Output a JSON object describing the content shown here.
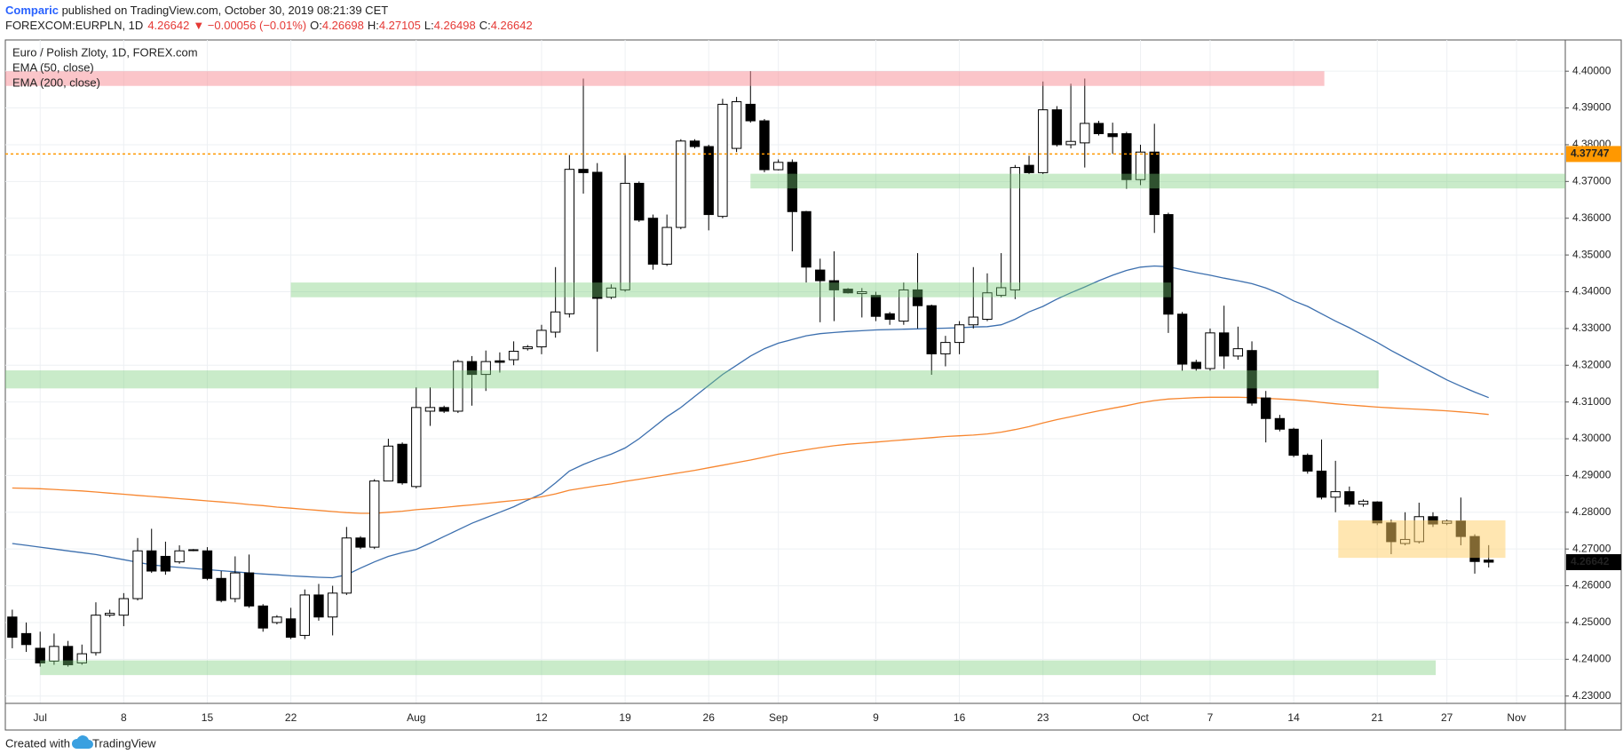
{
  "header": {
    "author": "Comparic",
    "published": " published on TradingView.com, October 30, 2019 08:21:39 CET",
    "symbol": "FOREXCOM:EURPLN, 1D",
    "price": "4.26642",
    "change": "▼ −0.00056 (−0.01%)",
    "ohlc": [
      {
        "label": "O:",
        "value": "4.26698"
      },
      {
        "label": "H:",
        "value": "4.27105"
      },
      {
        "label": "L:",
        "value": "4.26498"
      },
      {
        "label": "C:",
        "value": "4.26642"
      }
    ]
  },
  "footer": {
    "text": "Created with",
    "brand": "TradingView"
  },
  "chart_data": {
    "type": "candlestick",
    "title": "Euro / Polish Zloty, 1D, FOREX.com",
    "categories": [
      null,
      null,
      "Jul",
      null,
      null,
      null,
      null,
      null,
      "8",
      null,
      null,
      null,
      null,
      null,
      "15",
      null,
      null,
      null,
      null,
      null,
      "22",
      null,
      null,
      null,
      null,
      null,
      null,
      null,
      null,
      "Aug",
      null,
      null,
      null,
      null,
      null,
      null,
      null,
      null,
      "12",
      null,
      null,
      null,
      null,
      null,
      "19",
      null,
      null,
      null,
      null,
      null,
      "26",
      null,
      null,
      null,
      null,
      "Sep",
      null,
      null,
      null,
      null,
      null,
      null,
      "9",
      null,
      null,
      null,
      null,
      null,
      "16",
      null,
      null,
      null,
      null,
      null,
      "23",
      null,
      null,
      null,
      null,
      null,
      null,
      "Oct",
      null,
      null,
      null,
      null,
      "7",
      null,
      null,
      null,
      null,
      null,
      "14",
      null,
      null,
      null,
      null,
      null,
      "21",
      null,
      null,
      null,
      null,
      "27",
      null,
      null,
      null,
      null,
      "Nov",
      null,
      null,
      null
    ],
    "open": [
      4.2515,
      4.247,
      4.243,
      4.2395,
      4.2435,
      4.239,
      4.2418,
      4.252,
      4.252,
      4.2565,
      4.2695,
      4.268,
      4.2665,
      4.2696,
      4.2695,
      4.262,
      4.2565,
      4.2635,
      4.2545,
      4.25,
      4.251,
      4.2465,
      4.2575,
      4.2515,
      4.258,
      4.273,
      4.2705,
      4.2885,
      4.2985,
      4.287,
      4.3075,
      4.3085,
      4.3075,
      4.321,
      4.3175,
      4.3212,
      4.3215,
      4.3245,
      4.325,
      4.329,
      4.334,
      4.3733,
      4.3725,
      4.3385,
      4.3405,
      4.3695,
      4.36,
      4.3475,
      4.3575,
      4.381,
      4.3795,
      4.3605,
      4.379,
      4.391,
      4.3865,
      4.3732,
      4.3752,
      4.3618,
      4.3459,
      4.343,
      4.3407,
      4.3395,
      4.339,
      4.334,
      4.332,
      4.3405,
      4.3362,
      4.3231,
      4.3262,
      4.331,
      4.3325,
      4.339,
      4.3405,
      4.3744,
      4.3724,
      4.3895,
      4.38,
      4.3805,
      4.3858,
      4.383,
      4.383,
      4.3705,
      4.378,
      4.361,
      4.3339,
      4.3208,
      4.3191,
      4.3288,
      4.3225,
      4.324,
      4.3111,
      4.3055,
      4.3026,
      4.2955,
      4.2912,
      4.2841,
      4.2856,
      4.2822,
      4.2828,
      4.2771,
      4.2715,
      4.272,
      4.2788,
      4.277,
      4.2776,
      4.2734,
      4.26698,
      null,
      null,
      null,
      null,
      null
    ],
    "high": [
      4.2535,
      4.25,
      4.2475,
      4.247,
      4.245,
      4.244,
      4.2555,
      4.2535,
      4.258,
      4.273,
      4.2755,
      4.272,
      4.271,
      4.27,
      4.2705,
      4.264,
      4.268,
      4.2685,
      4.255,
      4.252,
      4.254,
      4.259,
      4.2605,
      4.26,
      4.276,
      4.2735,
      4.289,
      4.3,
      4.299,
      4.314,
      4.314,
      4.309,
      4.3215,
      4.3225,
      4.324,
      4.3235,
      4.3265,
      4.3255,
      4.331,
      4.3467,
      4.3772,
      4.398,
      4.375,
      4.342,
      4.3772,
      4.37,
      4.361,
      4.361,
      4.3815,
      4.3815,
      4.38,
      4.3925,
      4.393,
      4.4,
      4.387,
      4.376,
      4.376,
      4.362,
      4.349,
      4.351,
      4.341,
      4.341,
      4.34,
      4.3345,
      4.3425,
      4.3505,
      4.3365,
      4.328,
      4.332,
      4.3467,
      4.345,
      4.3505,
      4.3745,
      4.377,
      4.3972,
      4.3905,
      4.3966,
      4.398,
      4.3865,
      4.386,
      4.3835,
      4.38,
      4.3857,
      4.3615,
      4.3345,
      4.3215,
      4.33,
      4.3362,
      4.3305,
      4.3265,
      4.313,
      4.3065,
      4.303,
      4.296,
      4.2998,
      4.294,
      4.287,
      4.2835,
      4.283,
      4.278,
      4.28,
      4.2826,
      4.28,
      4.278,
      4.284,
      4.274,
      4.27105,
      null,
      null,
      null,
      null,
      null
    ],
    "low": [
      4.243,
      4.242,
      4.238,
      4.2385,
      4.238,
      4.2385,
      4.241,
      4.2515,
      4.249,
      4.256,
      4.2635,
      4.263,
      4.266,
      4.2694,
      4.2615,
      4.2555,
      4.2555,
      4.254,
      4.2475,
      4.2495,
      4.2455,
      4.2455,
      4.2505,
      4.2465,
      4.2575,
      4.27,
      4.27,
      4.2885,
      4.2875,
      4.2865,
      4.3035,
      4.307,
      4.307,
      4.309,
      4.313,
      4.318,
      4.32,
      4.324,
      4.323,
      4.3275,
      4.333,
      4.3667,
      4.3237,
      4.338,
      4.34,
      4.359,
      4.346,
      4.347,
      4.357,
      4.379,
      4.3567,
      4.36,
      4.378,
      4.386,
      4.3725,
      4.373,
      4.351,
      4.3425,
      4.3317,
      4.332,
      4.3395,
      4.333,
      4.332,
      4.331,
      4.331,
      4.33,
      4.3174,
      4.3197,
      4.323,
      4.33,
      4.332,
      4.3385,
      4.338,
      4.372,
      4.372,
      4.3795,
      4.379,
      4.3738,
      4.3825,
      4.3775,
      4.368,
      4.369,
      4.356,
      4.3288,
      4.3185,
      4.3185,
      4.3185,
      4.319,
      4.3215,
      4.309,
      4.299,
      4.302,
      4.295,
      4.2905,
      4.2835,
      4.28,
      4.2815,
      4.2815,
      4.2765,
      4.2686,
      4.271,
      4.2715,
      4.276,
      4.2765,
      4.271,
      4.2633,
      4.26498,
      null,
      null,
      null,
      null,
      null
    ],
    "close": [
      4.246,
      4.244,
      4.239,
      4.2435,
      4.2385,
      4.2415,
      4.252,
      4.2525,
      4.2565,
      4.2695,
      4.264,
      4.264,
      4.2695,
      4.2698,
      4.262,
      4.256,
      4.2635,
      4.2545,
      4.2485,
      4.2515,
      4.246,
      4.2575,
      4.2515,
      4.258,
      4.273,
      4.2705,
      4.2885,
      4.298,
      4.288,
      4.3085,
      4.3085,
      4.3075,
      4.321,
      4.3175,
      4.321,
      4.3208,
      4.3238,
      4.325,
      4.3295,
      4.3345,
      4.3733,
      4.3724,
      4.3382,
      4.341,
      4.3695,
      4.3595,
      4.3475,
      4.3575,
      4.381,
      4.3795,
      4.361,
      4.391,
      4.3917,
      4.3865,
      4.3732,
      4.3752,
      4.3618,
      4.3467,
      4.343,
      4.3405,
      4.3397,
      4.34,
      4.3333,
      4.3325,
      4.3405,
      4.3362,
      4.3231,
      4.3262,
      4.331,
      4.3331,
      4.3397,
      4.3411,
      4.3738,
      4.3724,
      4.3895,
      4.38,
      4.3809,
      4.3858,
      4.383,
      4.3822,
      4.3705,
      4.378,
      4.361,
      4.3339,
      4.3203,
      4.3191,
      4.3288,
      4.3225,
      4.3245,
      4.3097,
      4.3055,
      4.3026,
      4.2955,
      4.2912,
      4.2841,
      4.2856,
      4.2822,
      4.283,
      4.2771,
      4.272,
      4.2726,
      4.2788,
      4.2768,
      4.2776,
      4.2734,
      4.2666,
      4.26642,
      null,
      null,
      null,
      null,
      null
    ],
    "up_color": "#ffffff",
    "down_color": "#000000",
    "wick_color": "#000000",
    "series": [
      {
        "name": "EMA (50, close)",
        "color": "#3c6fae",
        "values": [
          4.2715,
          4.271,
          4.2705,
          4.27,
          4.2695,
          4.269,
          4.2685,
          4.2678,
          4.2671,
          4.2664,
          4.2657,
          4.2653,
          4.265,
          4.2647,
          4.2644,
          4.2641,
          4.2638,
          4.2635,
          4.2632,
          4.263,
          4.2627,
          4.2625,
          4.2623,
          4.2622,
          4.263,
          4.2648,
          4.2665,
          4.268,
          4.269,
          4.2699,
          4.2716,
          4.2734,
          4.2752,
          4.277,
          4.2785,
          4.28,
          4.2815,
          4.2833,
          4.285,
          4.288,
          4.2912,
          4.293,
          4.2945,
          4.2958,
          4.2975,
          4.3,
          4.303,
          4.306,
          4.3085,
          4.3115,
          4.3145,
          4.3175,
          4.32,
          4.3225,
          4.3245,
          4.326,
          4.327,
          4.328,
          4.3286,
          4.3289,
          4.3292,
          4.3294,
          4.3296,
          4.3297,
          4.3298,
          4.3299,
          4.33,
          4.3301,
          4.3302,
          4.3304,
          4.3305,
          4.331,
          4.3325,
          4.3345,
          4.336,
          4.338,
          4.3397,
          4.3413,
          4.343,
          4.3445,
          4.3458,
          4.3467,
          4.347,
          4.3468,
          4.346,
          4.3452,
          4.3445,
          4.3437,
          4.343,
          4.3422,
          4.341,
          4.3395,
          4.3375,
          4.336,
          4.334,
          4.332,
          4.3302,
          4.3282,
          4.3262,
          4.324,
          4.322,
          4.32,
          4.318,
          4.316,
          4.3143,
          4.3127,
          4.3112,
          null,
          null,
          null,
          null,
          null
        ]
      },
      {
        "name": "EMA (200, close)",
        "color": "#f7862f",
        "values": [
          4.2866,
          4.2865,
          4.2864,
          4.2862,
          4.286,
          4.2858,
          4.2855,
          4.2852,
          4.2849,
          4.2846,
          4.2843,
          4.284,
          4.2837,
          4.2834,
          4.2831,
          4.2828,
          4.2825,
          4.2821,
          4.2818,
          4.2814,
          4.2811,
          4.2808,
          4.2805,
          4.2802,
          4.2799,
          4.2797,
          4.2797,
          4.28,
          4.2803,
          4.2807,
          4.281,
          4.2813,
          4.2817,
          4.282,
          4.2824,
          4.2828,
          4.2832,
          4.2836,
          4.2842,
          4.285,
          4.286,
          4.2866,
          4.2872,
          4.2877,
          4.2884,
          4.289,
          4.2896,
          4.2902,
          4.2908,
          4.2914,
          4.2921,
          4.2928,
          4.2935,
          4.2942,
          4.295,
          4.2958,
          4.2964,
          4.297,
          4.2976,
          4.2981,
          4.2985,
          4.2988,
          4.2991,
          4.2994,
          4.2997,
          4.3,
          4.3003,
          4.3006,
          4.3008,
          4.301,
          4.3013,
          4.3018,
          4.3025,
          4.3033,
          4.3043,
          4.3052,
          4.306,
          4.3068,
          4.3076,
          4.3083,
          4.309,
          4.3098,
          4.3104,
          4.3108,
          4.311,
          4.3112,
          4.3113,
          4.3113,
          4.3113,
          4.3112,
          4.311,
          4.3108,
          4.3106,
          4.3103,
          4.3099,
          4.3095,
          4.3092,
          4.3089,
          4.3086,
          4.3084,
          4.3082,
          4.308,
          4.3078,
          4.3076,
          4.3073,
          4.307,
          4.3066,
          null,
          null,
          null,
          null,
          null
        ]
      }
    ],
    "zones": [
      {
        "x0": -0.5,
        "x1": 94.2,
        "top": 4.4,
        "bottom": 4.396,
        "color": "rgba(248,140,148,0.5)"
      },
      {
        "x0": 53,
        "x1": 111.5,
        "top": 4.3721,
        "bottom": 4.3681,
        "color": "rgba(120,205,120,0.4)"
      },
      {
        "x0": 20,
        "x1": 83.2,
        "top": 4.3425,
        "bottom": 4.3385,
        "color": "rgba(120,205,120,0.4)"
      },
      {
        "x0": -0.5,
        "x1": 98.1,
        "top": 4.3186,
        "bottom": 4.3137,
        "color": "rgba(120,205,120,0.4)"
      },
      {
        "x0": 2,
        "x1": 102.2,
        "top": 4.2397,
        "bottom": 4.2357,
        "color": "rgba(120,205,120,0.4)"
      },
      {
        "x0": 95.2,
        "x1": 107.2,
        "top": 4.2778,
        "bottom": 4.2676,
        "color": "rgba(255,205,100,0.5)"
      }
    ],
    "hline": {
      "value": 4.37747,
      "color": "#ff9800"
    },
    "ylim": [
      4.228,
      4.4085
    ],
    "yticks": [
      {
        "value": 4.23,
        "label": "4.23000"
      },
      {
        "value": 4.24,
        "label": "4.24000"
      },
      {
        "value": 4.25,
        "label": "4.25000"
      },
      {
        "value": 4.26,
        "label": "4.26000"
      },
      {
        "value": 4.27,
        "label": "4.27000"
      },
      {
        "value": 4.28,
        "label": "4.28000"
      },
      {
        "value": 4.29,
        "label": "4.29000"
      },
      {
        "value": 4.3,
        "label": "4.30000"
      },
      {
        "value": 4.31,
        "label": "4.31000"
      },
      {
        "value": 4.32,
        "label": "4.32000"
      },
      {
        "value": 4.33,
        "label": "4.33000"
      },
      {
        "value": 4.34,
        "label": "4.34000"
      },
      {
        "value": 4.35,
        "label": "4.35000"
      },
      {
        "value": 4.36,
        "label": "4.36000"
      },
      {
        "value": 4.37,
        "label": "4.37000"
      },
      {
        "value": 4.38,
        "label": "4.38000"
      },
      {
        "value": 4.39,
        "label": "4.39000"
      },
      {
        "value": 4.4,
        "label": "4.40000"
      }
    ],
    "grid": true
  }
}
